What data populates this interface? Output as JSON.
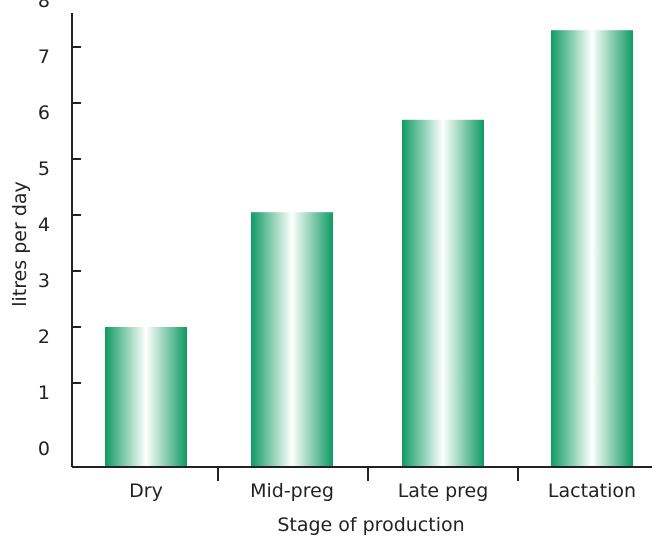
{
  "chart_data": {
    "type": "bar",
    "categories": [
      "Dry",
      "Mid-preg",
      "Late preg",
      "Lactation"
    ],
    "values": [
      2.5,
      4.55,
      6.2,
      7.8
    ],
    "title": "",
    "xlabel": "Stage of production",
    "ylabel": "litres per day",
    "ylim": [
      0,
      8
    ],
    "yticks": [
      "0",
      "1",
      "2",
      "3",
      "4",
      "5",
      "6",
      "7",
      "8"
    ],
    "grid": false,
    "bar_color": "#0f9a63",
    "bar_highlight": "#ffffff"
  }
}
